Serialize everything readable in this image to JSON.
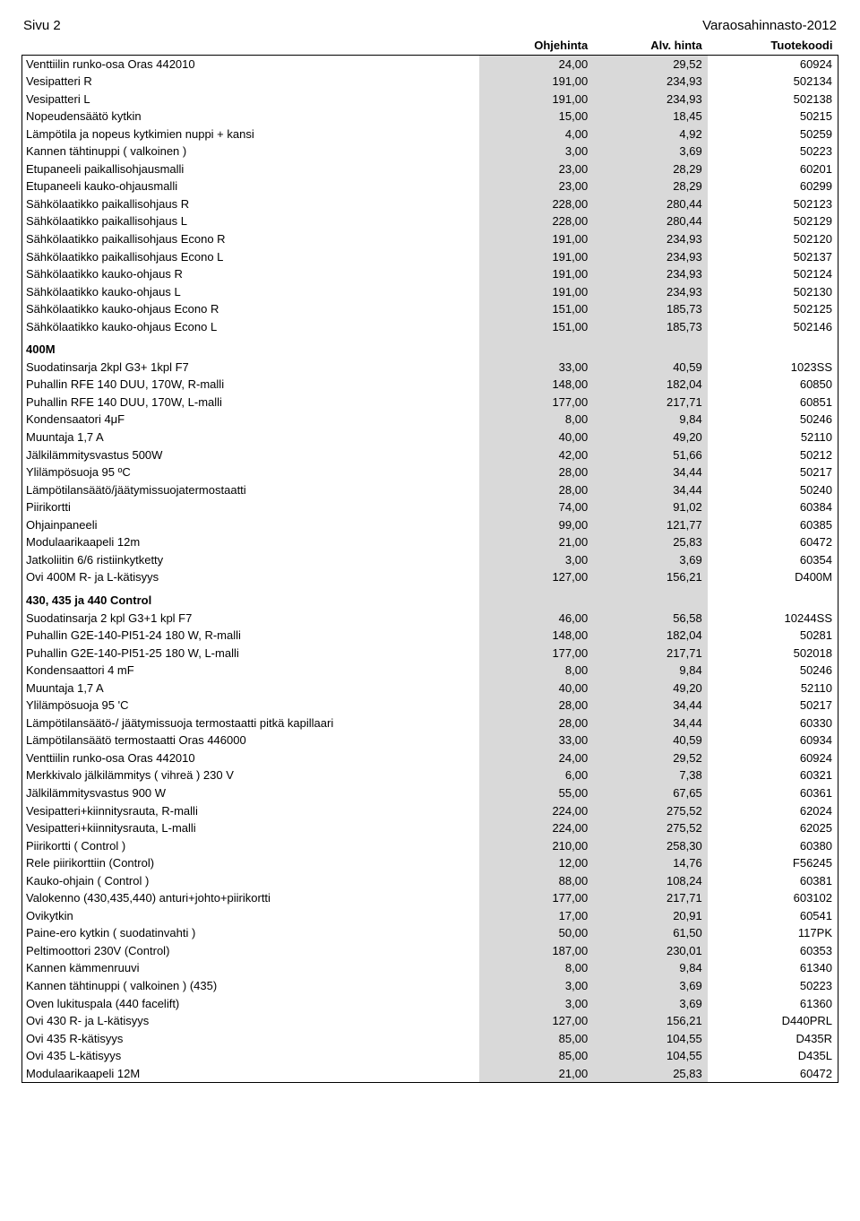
{
  "page_header": {
    "left": "Sivu 2",
    "right": "Varaosahinnasto-2012"
  },
  "columns": {
    "c1": "",
    "c2": "Ohjehinta",
    "c3": "Alv. hinta",
    "c4": "Tuotekoodi"
  },
  "colors": {
    "shade": "#d9d9d9",
    "border": "#000000",
    "text": "#000000",
    "bg": "#ffffff"
  },
  "typography": {
    "body_pt": 10,
    "header_pt": 11,
    "family": "Arial"
  },
  "groups": [
    {
      "rows": [
        {
          "label": "Venttiilin runko-osa Oras 442010",
          "p1": "24,00",
          "p2": "29,52",
          "code": "60924"
        },
        {
          "label": "Vesipatteri R",
          "p1": "191,00",
          "p2": "234,93",
          "code": "502134"
        },
        {
          "label": "Vesipatteri L",
          "p1": "191,00",
          "p2": "234,93",
          "code": "502138"
        },
        {
          "label": "Nopeudensäätö kytkin",
          "p1": "15,00",
          "p2": "18,45",
          "code": "50215"
        },
        {
          "label": "Lämpötila ja nopeus kytkimien nuppi + kansi",
          "p1": "4,00",
          "p2": "4,92",
          "code": "50259"
        },
        {
          "label": "Kannen tähtinuppi ( valkoinen )",
          "p1": "3,00",
          "p2": "3,69",
          "code": "50223"
        },
        {
          "label": "Etupaneeli paikallisohjausmalli",
          "p1": "23,00",
          "p2": "28,29",
          "code": "60201"
        },
        {
          "label": "Etupaneeli kauko-ohjausmalli",
          "p1": "23,00",
          "p2": "28,29",
          "code": "60299"
        },
        {
          "label": "Sähkölaatikko paikallisohjaus R",
          "p1": "228,00",
          "p2": "280,44",
          "code": "502123"
        },
        {
          "label": "Sähkölaatikko paikallisohjaus L",
          "p1": "228,00",
          "p2": "280,44",
          "code": "502129"
        },
        {
          "label": "Sähkölaatikko paikallisohjaus Econo R",
          "p1": "191,00",
          "p2": "234,93",
          "code": "502120"
        },
        {
          "label": "Sähkölaatikko paikallisohjaus Econo L",
          "p1": "191,00",
          "p2": "234,93",
          "code": "502137"
        },
        {
          "label": "Sähkölaatikko kauko-ohjaus R",
          "p1": "191,00",
          "p2": "234,93",
          "code": "502124"
        },
        {
          "label": "Sähkölaatikko kauko-ohjaus L",
          "p1": "191,00",
          "p2": "234,93",
          "code": "502130"
        },
        {
          "label": "Sähkölaatikko kauko-ohjaus Econo R",
          "p1": "151,00",
          "p2": "185,73",
          "code": "502125"
        },
        {
          "label": "Sähkölaatikko kauko-ohjaus Econo L",
          "p1": "151,00",
          "p2": "185,73",
          "code": "502146"
        }
      ]
    },
    {
      "title": "400M",
      "rows": [
        {
          "label": "Suodatinsarja 2kpl G3+ 1kpl F7",
          "p1": "33,00",
          "p2": "40,59",
          "code": "1023SS"
        },
        {
          "label": "Puhallin RFE 140 DUU, 170W, R-malli",
          "p1": "148,00",
          "p2": "182,04",
          "code": "60850"
        },
        {
          "label": "Puhallin RFE 140 DUU, 170W, L-malli",
          "p1": "177,00",
          "p2": "217,71",
          "code": "60851"
        },
        {
          "label": "Kondensaatori 4μF",
          "p1": "8,00",
          "p2": "9,84",
          "code": "50246"
        },
        {
          "label": "Muuntaja 1,7 A",
          "p1": "40,00",
          "p2": "49,20",
          "code": "52110"
        },
        {
          "label": "Jälkilämmitysvastus 500W",
          "p1": "42,00",
          "p2": "51,66",
          "code": "50212"
        },
        {
          "label": "Ylilämpösuoja 95 ºC",
          "p1": "28,00",
          "p2": "34,44",
          "code": "50217"
        },
        {
          "label": "Lämpötilansäätö/jäätymissuojatermostaatti",
          "p1": "28,00",
          "p2": "34,44",
          "code": "50240"
        },
        {
          "label": "Piirikortti",
          "p1": "74,00",
          "p2": "91,02",
          "code": "60384"
        },
        {
          "label": "Ohjainpaneeli",
          "p1": "99,00",
          "p2": "121,77",
          "code": "60385"
        },
        {
          "label": "Modulaarikaapeli 12m",
          "p1": "21,00",
          "p2": "25,83",
          "code": "60472"
        },
        {
          "label": "Jatkoliitin 6/6 ristiinkytketty",
          "p1": "3,00",
          "p2": "3,69",
          "code": "60354"
        },
        {
          "label": "Ovi 400M R- ja L-kätisyys",
          "p1": "127,00",
          "p2": "156,21",
          "code": "D400M"
        }
      ]
    },
    {
      "title": "430, 435 ja 440 Control",
      "rows": [
        {
          "label": "Suodatinsarja 2 kpl G3+1 kpl F7",
          "p1": "46,00",
          "p2": "56,58",
          "code": "10244SS"
        },
        {
          "label": "Puhallin G2E-140-PI51-24  180 W, R-malli",
          "p1": "148,00",
          "p2": "182,04",
          "code": "50281"
        },
        {
          "label": "Puhallin G2E-140-PI51-25  180 W, L-malli",
          "p1": "177,00",
          "p2": "217,71",
          "code": "502018"
        },
        {
          "label": "Kondensaattori 4 mF",
          "p1": "8,00",
          "p2": "9,84",
          "code": "50246"
        },
        {
          "label": "Muuntaja 1,7 A",
          "p1": "40,00",
          "p2": "49,20",
          "code": "52110"
        },
        {
          "label": "Ylilämpösuoja  95 'C",
          "p1": "28,00",
          "p2": "34,44",
          "code": "50217"
        },
        {
          "label": "Lämpötilansäätö-/ jäätymissuoja termostaatti pitkä kapillaari",
          "p1": "28,00",
          "p2": "34,44",
          "code": "60330"
        },
        {
          "label": "Lämpötilansäätö termostaatti Oras 446000",
          "p1": "33,00",
          "p2": "40,59",
          "code": "60934"
        },
        {
          "label": "Venttiilin runko-osa Oras 442010",
          "p1": "24,00",
          "p2": "29,52",
          "code": "60924"
        },
        {
          "label": "Merkkivalo jälkilämmitys ( vihreä ) 230 V",
          "p1": "6,00",
          "p2": "7,38",
          "code": "60321"
        },
        {
          "label": "Jälkilämmitysvastus 900 W",
          "p1": "55,00",
          "p2": "67,65",
          "code": "60361"
        },
        {
          "label": "Vesipatteri+kiinnitysrauta, R-malli",
          "p1": "224,00",
          "p2": "275,52",
          "code": "62024"
        },
        {
          "label": "Vesipatteri+kiinnitysrauta, L-malli",
          "p1": "224,00",
          "p2": "275,52",
          "code": "62025"
        },
        {
          "label": "Piirikortti ( Control )",
          "p1": "210,00",
          "p2": "258,30",
          "code": "60380"
        },
        {
          "label": "Rele piirikorttiin (Control)",
          "p1": "12,00",
          "p2": "14,76",
          "code": "F56245"
        },
        {
          "label": "Kauko-ohjain ( Control )",
          "p1": "88,00",
          "p2": "108,24",
          "code": "60381"
        },
        {
          "label": "Valokenno (430,435,440) anturi+johto+piirikortti",
          "p1": "177,00",
          "p2": "217,71",
          "code": "603102"
        },
        {
          "label": "Ovikytkin",
          "p1": "17,00",
          "p2": "20,91",
          "code": "60541"
        },
        {
          "label": "Paine-ero kytkin ( suodatinvahti )",
          "p1": "50,00",
          "p2": "61,50",
          "code": "117PK"
        },
        {
          "label": "Peltimoottori 230V (Control)",
          "p1": "187,00",
          "p2": "230,01",
          "code": "60353"
        },
        {
          "label": "Kannen kämmenruuvi",
          "p1": "8,00",
          "p2": "9,84",
          "code": "61340"
        },
        {
          "label": "Kannen tähtinuppi ( valkoinen ) (435)",
          "p1": "3,00",
          "p2": "3,69",
          "code": "50223"
        },
        {
          "label": "Oven lukituspala (440 facelift)",
          "p1": "3,00",
          "p2": "3,69",
          "code": "61360"
        },
        {
          "label": "Ovi 430 R- ja L-kätisyys",
          "p1": "127,00",
          "p2": "156,21",
          "code": "D440PRL"
        },
        {
          "label": "Ovi 435 R-kätisyys",
          "p1": "85,00",
          "p2": "104,55",
          "code": "D435R"
        },
        {
          "label": "Ovi 435 L-kätisyys",
          "p1": "85,00",
          "p2": "104,55",
          "code": "D435L"
        },
        {
          "label": "Modulaarikaapeli 12M",
          "p1": "21,00",
          "p2": "25,83",
          "code": "60472"
        }
      ]
    }
  ]
}
